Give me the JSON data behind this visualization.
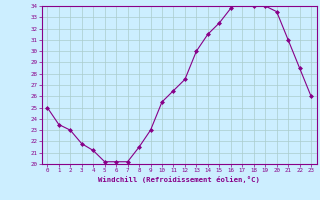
{
  "x": [
    0,
    1,
    2,
    3,
    4,
    5,
    6,
    7,
    8,
    9,
    10,
    11,
    12,
    13,
    14,
    15,
    16,
    17,
    18,
    19,
    20,
    21,
    22,
    23
  ],
  "y": [
    25.0,
    23.5,
    23.0,
    21.8,
    21.2,
    20.2,
    20.2,
    20.2,
    21.5,
    23.0,
    25.5,
    26.5,
    27.5,
    30.0,
    31.5,
    32.5,
    33.8,
    34.5,
    34.0,
    34.0,
    33.5,
    31.0,
    28.5,
    26.0
  ],
  "ylim": [
    20,
    34
  ],
  "xlim": [
    -0.5,
    23.5
  ],
  "yticks": [
    20,
    21,
    22,
    23,
    24,
    25,
    26,
    27,
    28,
    29,
    30,
    31,
    32,
    33,
    34
  ],
  "xticks": [
    0,
    1,
    2,
    3,
    4,
    5,
    6,
    7,
    8,
    9,
    10,
    11,
    12,
    13,
    14,
    15,
    16,
    17,
    18,
    19,
    20,
    21,
    22,
    23
  ],
  "xlabel": "Windchill (Refroidissement éolien,°C)",
  "line_color": "#880088",
  "marker": "D",
  "marker_size": 2.0,
  "bg_color": "#cceeff",
  "grid_color": "#aacccc",
  "axis_label_color": "#880088",
  "tick_label_color": "#880088",
  "spine_color": "#880088"
}
